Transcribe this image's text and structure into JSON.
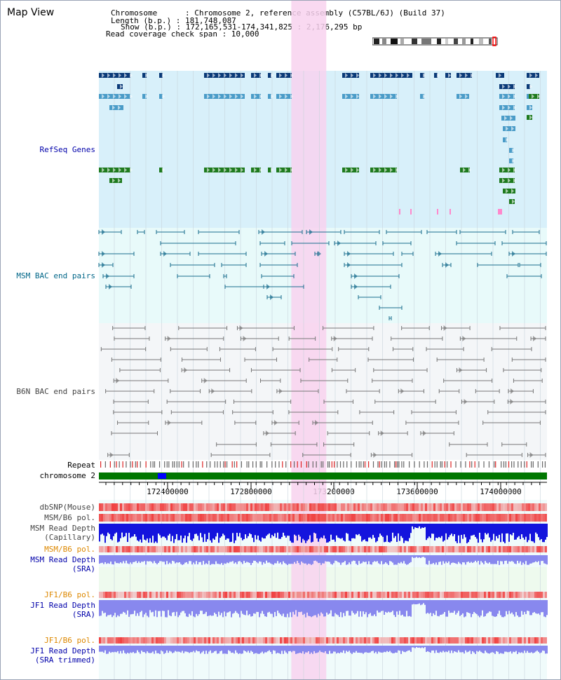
{
  "view_title": "Map View",
  "info": {
    "chromosome_line": "Chromosome      : Chromosome 2, reference assembly (C57BL/6J) (Build 37)",
    "length_line": "Length (b.p.) : 181,748,087",
    "show_line": "Show (b.p.) : 172,165,531-174,341,825 : 2,176,295 bp",
    "coverage_line": "Read coverage check span : 10,000"
  },
  "tracks": {
    "refseq": "RefSeq Genes",
    "msm_bac": "MSM BAC end pairs",
    "b6n_bac": "B6N BAC end pairs",
    "repeat": "Repeat",
    "chromosome": "chromosome 2",
    "dbsnp": "dbSNP(Mouse)",
    "msm_b6_pol_1": "MSM/B6 pol.",
    "msm_read_depth_cap_1": "MSM Read Depth",
    "msm_read_depth_cap_2": "(Capillary)",
    "msm_b6_pol_2": "MSM/B6 pol.",
    "msm_read_depth_sra_1": "MSM Read Depth",
    "msm_read_depth_sra_2": "(SRA)",
    "jf1_b6_pol_1": "JF1/B6 pol.",
    "jf1_read_depth_sra_1": "JF1 Read Depth",
    "jf1_read_depth_sra_2": "(SRA)",
    "jf1_b6_pol_2": "JF1/B6 pol.",
    "jf1_read_depth_trim_1": "JF1 Read Depth",
    "jf1_read_depth_trim_2": "(SRA trimmed)"
  },
  "ruler": {
    "start_bp": 172165531,
    "end_bp": 174341825,
    "tick_labels": [
      "172400000",
      "172800000",
      "173200000",
      "173600000",
      "174000000"
    ]
  },
  "highlight": {
    "start_bp": 173100000,
    "end_bp": 173270000
  },
  "colors": {
    "refseq_bg": "#d8f0fa",
    "bac_bg": "#e8fafa",
    "b6n_bg": "#f4f6f8",
    "highlight": "#f8d2ee",
    "gene_navy": "#0a3a78",
    "gene_blue": "#4a9cc8",
    "gene_green": "#1e7a1e",
    "msm_pair": "#1a6e8e",
    "b6n_pair": "#777777",
    "chromosome_bar": "#007700",
    "chromosome_mark": "#0000ff",
    "snp_red": "#ee3333",
    "depth_blue": "#1414dd",
    "depth_light": "#8888ee"
  }
}
